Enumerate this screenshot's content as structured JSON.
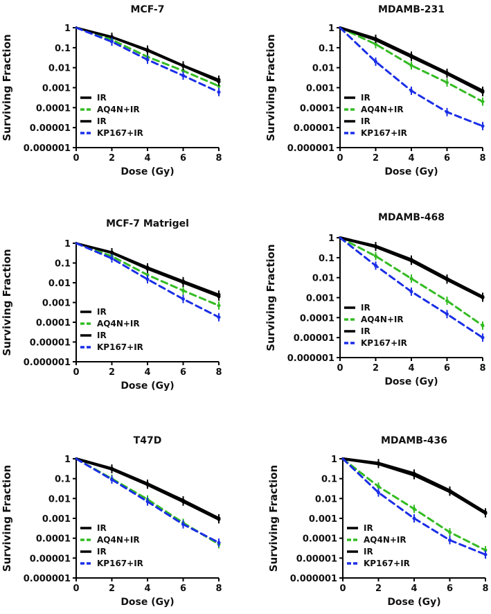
{
  "figure": {
    "dose_unit_note": "Dose (Gy)"
  },
  "colors": {
    "ir": "#000000",
    "aq4n": "#33bb22",
    "kp167": "#1a2ee6"
  },
  "chart_data": [
    {
      "type": "line",
      "title": "MCF-7",
      "xlabel": "Dose (Gy)",
      "ylabel": "Surviving Fraction",
      "yscale": "log",
      "xlim": [
        0,
        8
      ],
      "ylim": [
        1e-06,
        1
      ],
      "xticks": [
        "0",
        "2",
        "4",
        "6",
        "8"
      ],
      "yticks": [
        "1",
        "0.1",
        "0.01",
        "0.001",
        "0.0001",
        "0.00001",
        "0.000001"
      ],
      "legend": [
        "IR",
        "AQ4N+IR",
        "IR",
        "KP167+IR"
      ],
      "series": [
        {
          "name": "IR",
          "color": "ir",
          "dash": false,
          "thick": false,
          "x": [
            0,
            2,
            4,
            6,
            8
          ],
          "y": [
            1,
            0.35,
            0.08,
            0.013,
            0.0025
          ]
        },
        {
          "name": "AQ4N+IR",
          "color": "aq4n",
          "dash": true,
          "thick": false,
          "x": [
            0,
            2,
            4,
            6,
            8
          ],
          "y": [
            1,
            0.25,
            0.035,
            0.007,
            0.0012
          ]
        },
        {
          "name": "IR",
          "color": "ir",
          "dash": false,
          "thick": false,
          "x": [
            0,
            2,
            4,
            6,
            8
          ],
          "y": [
            1,
            0.33,
            0.07,
            0.012,
            0.002
          ]
        },
        {
          "name": "KP167+IR",
          "color": "kp167",
          "dash": true,
          "thick": false,
          "x": [
            0,
            2,
            4,
            6,
            8
          ],
          "y": [
            1,
            0.2,
            0.025,
            0.004,
            0.0006
          ]
        }
      ]
    },
    {
      "type": "line",
      "title": "MDAMB-231",
      "xlabel": "Dose (Gy)",
      "ylabel": "Surviving Fraction",
      "yscale": "log",
      "xlim": [
        0,
        8
      ],
      "ylim": [
        1e-06,
        1
      ],
      "xticks": [
        "0",
        "2",
        "4",
        "6",
        "8"
      ],
      "yticks": [
        "1",
        "0.1",
        "0.01",
        "0.001",
        "0.0001",
        "0.00001",
        "0.000001"
      ],
      "legend": [
        "IR",
        "AQ4N+IR",
        "IR",
        "KP167+IR"
      ],
      "series": [
        {
          "name": "IR",
          "color": "ir",
          "dash": false,
          "thick": true,
          "x": [
            0,
            2,
            4,
            6,
            8
          ],
          "y": [
            1,
            0.25,
            0.035,
            0.005,
            0.0006
          ]
        },
        {
          "name": "AQ4N+IR",
          "color": "aq4n",
          "dash": true,
          "thick": false,
          "x": [
            0,
            2,
            4,
            6,
            8
          ],
          "y": [
            1,
            0.15,
            0.013,
            0.0018,
            0.0002
          ]
        },
        {
          "name": "IR",
          "color": "ir",
          "dash": false,
          "thick": true,
          "x": [
            0,
            2,
            4,
            6,
            8
          ],
          "y": [
            1,
            0.28,
            0.04,
            0.0055,
            0.0007
          ]
        },
        {
          "name": "KP167+IR",
          "color": "kp167",
          "dash": true,
          "thick": false,
          "x": [
            0,
            2,
            4,
            6,
            8
          ],
          "y": [
            1,
            0.02,
            0.0007,
            6e-05,
            1.2e-05
          ]
        }
      ]
    },
    {
      "type": "line",
      "title": "MCF-7 Matrigel",
      "xlabel": "Dose (Gy)",
      "ylabel": "Surviving Fraction",
      "yscale": "log",
      "xlim": [
        0,
        8
      ],
      "ylim": [
        1e-06,
        1
      ],
      "xticks": [
        "0",
        "2",
        "4",
        "6",
        "8"
      ],
      "yticks": [
        "1",
        "0.1",
        "0.01",
        "0.001",
        "0.0001",
        "0.00001",
        "0.000001"
      ],
      "legend": [
        "IR",
        "AQ4N+IR",
        "IR",
        "KP167+IR"
      ],
      "series": [
        {
          "name": "IR",
          "color": "ir",
          "dash": false,
          "thick": false,
          "x": [
            0,
            2,
            4,
            6,
            8
          ],
          "y": [
            1,
            0.35,
            0.06,
            0.012,
            0.0025
          ]
        },
        {
          "name": "AQ4N+IR",
          "color": "aq4n",
          "dash": true,
          "thick": false,
          "x": [
            0,
            2,
            4,
            6,
            8
          ],
          "y": [
            1,
            0.22,
            0.025,
            0.004,
            0.0007
          ]
        },
        {
          "name": "IR",
          "color": "ir",
          "dash": false,
          "thick": false,
          "x": [
            0,
            2,
            4,
            6,
            8
          ],
          "y": [
            1,
            0.32,
            0.05,
            0.01,
            0.002
          ]
        },
        {
          "name": "KP167+IR",
          "color": "kp167",
          "dash": true,
          "thick": false,
          "x": [
            0,
            2,
            4,
            6,
            8
          ],
          "y": [
            1,
            0.17,
            0.015,
            0.0015,
            0.00018
          ]
        }
      ]
    },
    {
      "type": "line",
      "title": "MDAMB-468",
      "xlabel": "Dose (Gy)",
      "ylabel": "Surviving Fraction",
      "yscale": "log",
      "xlim": [
        0,
        8
      ],
      "ylim": [
        1e-06,
        1
      ],
      "xticks": [
        "0",
        "2",
        "4",
        "6",
        "8"
      ],
      "yticks": [
        "1",
        "0.1",
        "0.01",
        "0.001",
        "0.0001",
        "0.00001",
        "0.000001"
      ],
      "legend": [
        "IR",
        "AQ4N+IR",
        "IR",
        "KP167+IR"
      ],
      "series": [
        {
          "name": "IR",
          "color": "ir",
          "dash": false,
          "thick": true,
          "x": [
            0,
            2,
            4,
            6,
            8
          ],
          "y": [
            1,
            0.35,
            0.07,
            0.008,
            0.001
          ]
        },
        {
          "name": "AQ4N+IR",
          "color": "aq4n",
          "dash": true,
          "thick": false,
          "x": [
            0,
            2,
            4,
            6,
            8
          ],
          "y": [
            1,
            0.12,
            0.009,
            0.0007,
            4e-05
          ]
        },
        {
          "name": "IR",
          "color": "ir",
          "dash": false,
          "thick": true,
          "x": [
            0,
            2,
            4,
            6,
            8
          ],
          "y": [
            1,
            0.38,
            0.08,
            0.009,
            0.0011
          ]
        },
        {
          "name": "KP167+IR",
          "color": "kp167",
          "dash": true,
          "thick": false,
          "x": [
            0,
            2,
            4,
            6,
            8
          ],
          "y": [
            1,
            0.04,
            0.002,
            0.00015,
            1e-05
          ]
        }
      ]
    },
    {
      "type": "line",
      "title": "T47D",
      "xlabel": "Dose (Gy)",
      "ylabel": "Surviving Fraction",
      "yscale": "log",
      "xlim": [
        0,
        8
      ],
      "ylim": [
        1e-06,
        1
      ],
      "xticks": [
        "0",
        "2",
        "4",
        "6",
        "8"
      ],
      "yticks": [
        "1",
        "0.1",
        "0.01",
        "0.001",
        "0.0001",
        "0.00001",
        "0.000001"
      ],
      "legend": [
        "IR",
        "AQ4N+IR",
        "IR",
        "KP167+IR"
      ],
      "series": [
        {
          "name": "IR",
          "color": "ir",
          "dash": false,
          "thick": true,
          "x": [
            0,
            2,
            4,
            6,
            8
          ],
          "y": [
            1,
            0.3,
            0.05,
            0.007,
            0.0009
          ]
        },
        {
          "name": "AQ4N+IR",
          "color": "aq4n",
          "dash": true,
          "thick": false,
          "x": [
            0,
            2,
            4,
            6,
            8
          ],
          "y": [
            1,
            0.1,
            0.009,
            0.0006,
            5e-05
          ]
        },
        {
          "name": "IR",
          "color": "ir",
          "dash": false,
          "thick": true,
          "x": [
            0,
            2,
            4,
            6,
            8
          ],
          "y": [
            1,
            0.32,
            0.055,
            0.008,
            0.001
          ]
        },
        {
          "name": "KP167+IR",
          "color": "kp167",
          "dash": true,
          "thick": false,
          "x": [
            0,
            2,
            4,
            6,
            8
          ],
          "y": [
            1,
            0.09,
            0.007,
            0.0005,
            6e-05
          ]
        }
      ]
    },
    {
      "type": "line",
      "title": "MDAMB-436",
      "xlabel": "Dose (Gy)",
      "ylabel": "Surviving Fraction",
      "yscale": "log",
      "xlim": [
        0,
        8
      ],
      "ylim": [
        1e-06,
        1
      ],
      "xticks": [
        "0",
        "2",
        "4",
        "6",
        "8"
      ],
      "yticks": [
        "1",
        "0.1",
        "0.01",
        "0.001",
        "0.0001",
        "0.00001",
        "0.000001"
      ],
      "legend": [
        "IR",
        "AQ4N+IR",
        "IR",
        "KP167+IR"
      ],
      "series": [
        {
          "name": "IR",
          "color": "ir",
          "dash": false,
          "thick": true,
          "x": [
            0,
            2,
            4,
            6,
            8
          ],
          "y": [
            1,
            0.55,
            0.15,
            0.022,
            0.0018
          ]
        },
        {
          "name": "AQ4N+IR",
          "color": "aq4n",
          "dash": true,
          "thick": false,
          "x": [
            0,
            2,
            4,
            6,
            8
          ],
          "y": [
            1,
            0.04,
            0.003,
            0.0002,
            2.5e-05
          ]
        },
        {
          "name": "IR",
          "color": "ir",
          "dash": false,
          "thick": true,
          "x": [
            0,
            2,
            4,
            6,
            8
          ],
          "y": [
            1,
            0.6,
            0.18,
            0.025,
            0.002
          ]
        },
        {
          "name": "KP167+IR",
          "color": "kp167",
          "dash": true,
          "thick": false,
          "x": [
            0,
            2,
            4,
            6,
            8
          ],
          "y": [
            1,
            0.02,
            0.001,
            8e-05,
            1.5e-05
          ]
        }
      ]
    }
  ]
}
